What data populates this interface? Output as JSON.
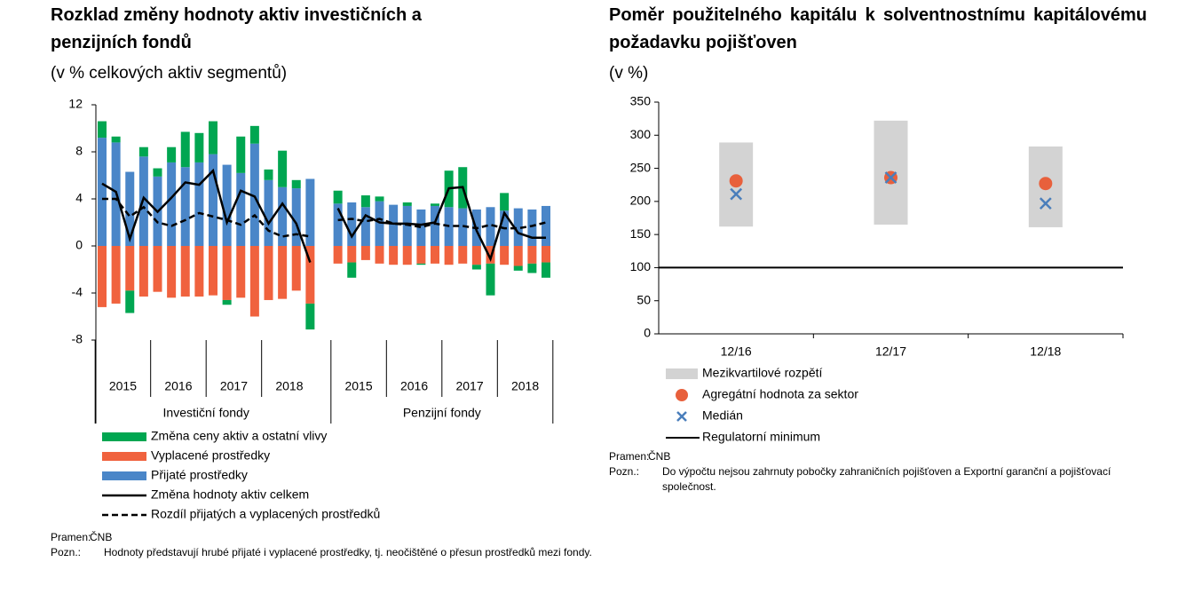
{
  "chart_data": [
    {
      "type": "stacked_bar",
      "title": "Rozklad změny hodnoty aktiv investičních a penzijních fondů",
      "subtitle": "(v % celkových aktiv segmentů)",
      "categories": [
        null,
        null,
        null,
        null,
        null,
        null,
        null,
        null,
        null,
        null,
        null,
        null,
        null,
        null,
        null,
        null,
        null,
        null,
        null,
        null,
        null,
        null,
        null,
        null,
        null,
        null,
        null,
        null,
        null,
        null,
        null,
        null,
        null
      ],
      "groups": [
        {
          "name": "Investiční fondy",
          "labels": [
            "2015",
            "2016",
            "2017",
            "2018"
          ]
        },
        {
          "name": "Penzijní fondy",
          "labels": [
            "2015",
            "2016",
            "2017",
            "2018"
          ]
        }
      ],
      "ylim": [
        -8,
        12
      ],
      "yticks": [
        -8,
        -4,
        0,
        4,
        8,
        12
      ],
      "series": [
        {
          "name": "Změna ceny aktiv a ostatní vlivy",
          "color": "#00a651",
          "kind": "bar",
          "values": [
            1.4,
            0.5,
            -1.9,
            0.8,
            0.7,
            1.3,
            3.0,
            2.5,
            2.8,
            -0.4,
            3.1,
            1.5,
            0.9,
            3.1,
            0.7,
            -2.2,
            null,
            1.1,
            -1.3,
            1.0,
            0.4,
            0,
            0.3,
            -0.1,
            0.2,
            3.1,
            3.5,
            -0.4,
            -2.7,
            1.5,
            -0.4,
            -0.8,
            -1.3
          ]
        },
        {
          "name": "Vyplacené prostředky",
          "color": "#f0623e",
          "kind": "bar",
          "values": [
            -5.2,
            -4.9,
            -3.8,
            -4.3,
            -3.9,
            -4.4,
            -4.3,
            -4.3,
            -4.2,
            -4.6,
            -4.4,
            -6.0,
            -4.6,
            -4.5,
            -3.8,
            -4.9,
            null,
            -1.5,
            -1.4,
            -1.2,
            -1.5,
            -1.6,
            -1.6,
            -1.5,
            -1.5,
            -1.6,
            -1.5,
            -1.6,
            -1.5,
            -1.6,
            -1.7,
            -1.5,
            -1.4
          ]
        },
        {
          "name": "Přijaté prostředky",
          "color": "#4a86c8",
          "kind": "bar",
          "values": [
            9.2,
            8.8,
            6.3,
            7.6,
            5.9,
            7.1,
            6.7,
            7.1,
            7.8,
            6.9,
            6.2,
            8.7,
            5.6,
            5.0,
            4.9,
            5.7,
            null,
            3.6,
            3.7,
            3.3,
            3.8,
            3.5,
            3.4,
            3.1,
            3.4,
            3.3,
            3.2,
            3.1,
            3.3,
            3.0,
            3.2,
            3.1,
            3.4
          ]
        },
        {
          "name": "Změna hodnoty aktiv celkem",
          "color": "#000000",
          "kind": "line",
          "style": "solid",
          "values": [
            5.3,
            4.6,
            0.6,
            4.1,
            2.9,
            4.1,
            5.4,
            5.2,
            6.4,
            2.0,
            4.7,
            4.2,
            1.9,
            3.6,
            1.9,
            -1.4,
            null,
            3.2,
            0.8,
            2.6,
            2.0,
            1.9,
            1.9,
            1.8,
            2.0,
            4.9,
            5.0,
            1.3,
            -1.1,
            2.8,
            1.1,
            0.7,
            0.7
          ]
        },
        {
          "name": "Rozdíl přijatých a vyplacených prostředků",
          "color": "#000000",
          "kind": "line",
          "style": "dashed",
          "values": [
            4.0,
            4.0,
            2.5,
            3.3,
            2.0,
            1.7,
            2.2,
            2.8,
            2.5,
            2.2,
            1.8,
            2.6,
            1.3,
            0.8,
            1.0,
            0.8,
            null,
            2.2,
            2.3,
            2.1,
            2.3,
            1.9,
            1.8,
            1.6,
            1.9,
            1.7,
            1.7,
            1.5,
            1.8,
            1.5,
            1.5,
            1.7,
            2.0
          ]
        }
      ],
      "source_label": "Pramen:",
      "source": "ČNB",
      "note_label": "Pozn.:",
      "note": "Hodnoty představují hrubé přijaté i vyplacené prostředky, tj. neočištěné o přesun prostředků mezi fondy."
    },
    {
      "type": "range_dot",
      "title": "Poměr použitelného kapitálu k solventnostnímu kapitálovému požadavku pojišťoven",
      "subtitle": "(v %)",
      "categories": [
        "12/16",
        "12/17",
        "12/18"
      ],
      "ylim": [
        0,
        350
      ],
      "yticks": [
        0,
        50,
        100,
        150,
        200,
        250,
        300,
        350
      ],
      "series": [
        {
          "name": "Mezikvartilové rozpětí",
          "color": "#d3d3d3",
          "marker": "box",
          "low": [
            162,
            165,
            161
          ],
          "high": [
            289,
            322,
            283
          ]
        },
        {
          "name": "Agregátní hodnota za sektor",
          "color": "#e8603c",
          "marker": "circle",
          "values": [
            231,
            236,
            227
          ]
        },
        {
          "name": "Medián",
          "color": "#4a7ebb",
          "marker": "x",
          "values": [
            211,
            236,
            197
          ]
        }
      ],
      "reference_line": {
        "name": "Regulatorní minimum",
        "value": 100,
        "color": "#000000"
      },
      "source_label": "Pramen:",
      "source": "ČNB",
      "note_label": "Pozn.:",
      "note": "Do výpočtu nejsou zahrnuty pobočky zahraničních pojišťoven a Exportní garanční a pojišťovací společnost."
    }
  ]
}
